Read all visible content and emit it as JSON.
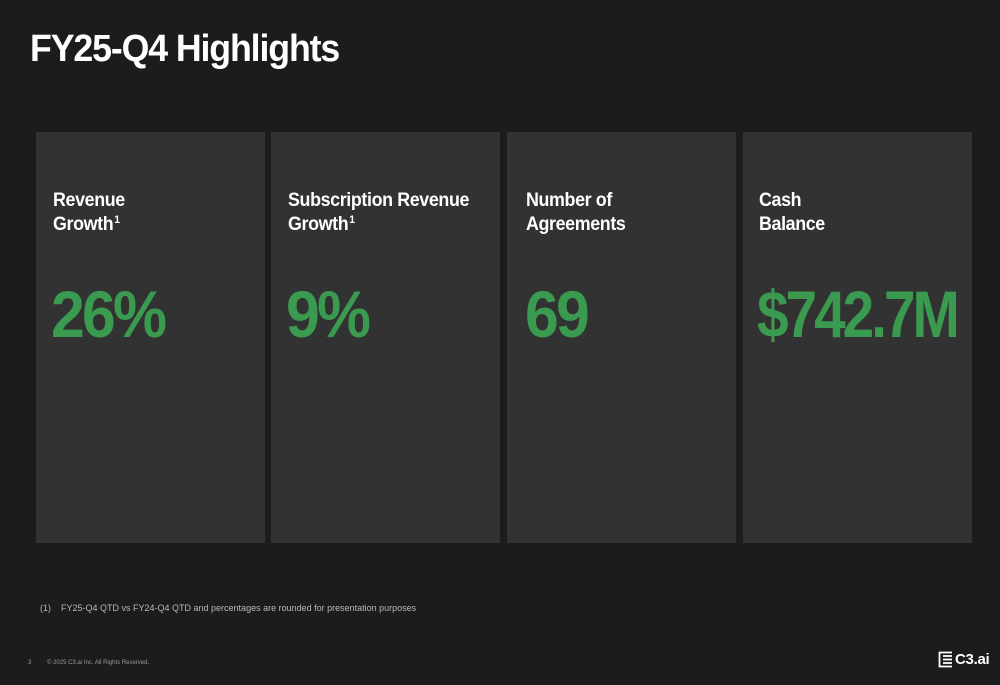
{
  "slide": {
    "title": "FY25-Q4 Highlights"
  },
  "cards": [
    {
      "label_line1": "Revenue",
      "label_line2": "Growth",
      "superscript": "1",
      "value": "26%"
    },
    {
      "label_line1": "Subscription Revenue",
      "label_line2": "Growth",
      "superscript": "1",
      "value": "9%"
    },
    {
      "label_line1": "Number of",
      "label_line2": "Agreements",
      "superscript": "",
      "value": "69"
    },
    {
      "label_line1": "Cash",
      "label_line2": "Balance",
      "superscript": "",
      "value": "$742.7M"
    }
  ],
  "footnote": {
    "marker": "(1)",
    "text": "FY25-Q4 QTD vs FY24-Q4 QTD and percentages are rounded for presentation purposes"
  },
  "footer": {
    "page_number": "3",
    "copyright": "© 2025 C3.ai Inc. All Rights Reserved.",
    "logo_text": "C3.ai"
  },
  "colors": {
    "background": "#1c1c1c",
    "card": "#323232",
    "accent_green": "#3a9a4f"
  },
  "icons": {
    "logo": "c3ai-logo-icon"
  }
}
